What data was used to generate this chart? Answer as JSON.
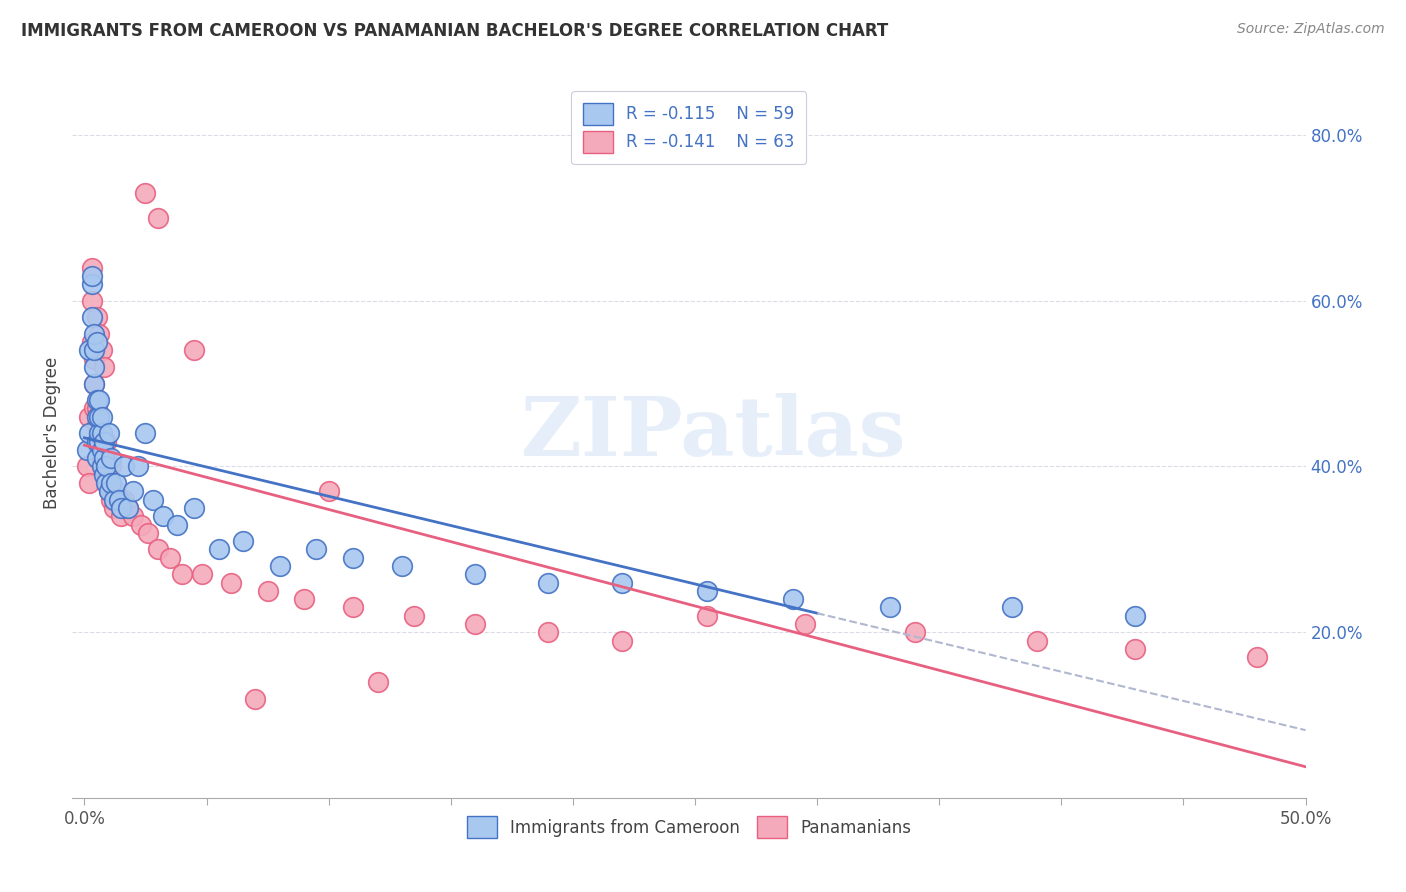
{
  "title": "IMMIGRANTS FROM CAMEROON VS PANAMANIAN BACHELOR'S DEGREE CORRELATION CHART",
  "source": "Source: ZipAtlas.com",
  "ylabel": "Bachelor's Degree",
  "x_tick_labels": [
    "0.0%",
    "",
    "",
    "",
    "",
    "",
    "",
    "",
    "",
    "50.0%"
  ],
  "x_tick_values": [
    0.0,
    0.05,
    0.1,
    0.15,
    0.2,
    0.25,
    0.3,
    0.35,
    0.4,
    0.5
  ],
  "y_tick_labels": [
    "20.0%",
    "40.0%",
    "60.0%",
    "80.0%"
  ],
  "y_tick_values": [
    0.2,
    0.4,
    0.6,
    0.8
  ],
  "xlim": [
    -0.005,
    0.5
  ],
  "ylim": [
    0.0,
    0.88
  ],
  "color_blue": "#A8C8F0",
  "color_pink": "#F4AABB",
  "color_blue_line": "#4472C4",
  "color_pink_line": "#E86080",
  "color_dashed": "#B0B8D0",
  "blue_x": [
    0.001,
    0.002,
    0.002,
    0.003,
    0.003,
    0.003,
    0.004,
    0.004,
    0.004,
    0.004,
    0.005,
    0.005,
    0.005,
    0.005,
    0.005,
    0.006,
    0.006,
    0.006,
    0.006,
    0.007,
    0.007,
    0.007,
    0.007,
    0.008,
    0.008,
    0.008,
    0.009,
    0.009,
    0.01,
    0.01,
    0.011,
    0.011,
    0.012,
    0.013,
    0.014,
    0.015,
    0.016,
    0.018,
    0.02,
    0.022,
    0.025,
    0.028,
    0.032,
    0.038,
    0.045,
    0.055,
    0.065,
    0.08,
    0.095,
    0.11,
    0.13,
    0.16,
    0.19,
    0.22,
    0.255,
    0.29,
    0.33,
    0.38,
    0.43
  ],
  "blue_y": [
    0.42,
    0.44,
    0.54,
    0.58,
    0.62,
    0.63,
    0.5,
    0.52,
    0.54,
    0.56,
    0.41,
    0.43,
    0.46,
    0.48,
    0.55,
    0.43,
    0.44,
    0.46,
    0.48,
    0.4,
    0.42,
    0.44,
    0.46,
    0.39,
    0.41,
    0.43,
    0.38,
    0.4,
    0.37,
    0.44,
    0.38,
    0.41,
    0.36,
    0.38,
    0.36,
    0.35,
    0.4,
    0.35,
    0.37,
    0.4,
    0.44,
    0.36,
    0.34,
    0.33,
    0.35,
    0.3,
    0.31,
    0.28,
    0.3,
    0.29,
    0.28,
    0.27,
    0.26,
    0.26,
    0.25,
    0.24,
    0.23,
    0.23,
    0.22
  ],
  "pink_x": [
    0.001,
    0.002,
    0.002,
    0.003,
    0.003,
    0.003,
    0.004,
    0.004,
    0.004,
    0.005,
    0.005,
    0.005,
    0.005,
    0.006,
    0.006,
    0.006,
    0.006,
    0.007,
    0.007,
    0.007,
    0.008,
    0.008,
    0.008,
    0.009,
    0.009,
    0.009,
    0.01,
    0.01,
    0.011,
    0.011,
    0.012,
    0.013,
    0.014,
    0.015,
    0.016,
    0.018,
    0.02,
    0.023,
    0.026,
    0.03,
    0.035,
    0.04,
    0.048,
    0.06,
    0.075,
    0.09,
    0.11,
    0.135,
    0.16,
    0.19,
    0.22,
    0.255,
    0.295,
    0.34,
    0.39,
    0.43,
    0.48,
    0.1,
    0.12,
    0.025,
    0.03,
    0.045,
    0.07
  ],
  "pink_y": [
    0.4,
    0.38,
    0.46,
    0.55,
    0.6,
    0.64,
    0.47,
    0.5,
    0.53,
    0.43,
    0.45,
    0.47,
    0.58,
    0.42,
    0.44,
    0.46,
    0.56,
    0.41,
    0.43,
    0.54,
    0.4,
    0.42,
    0.52,
    0.39,
    0.41,
    0.43,
    0.37,
    0.39,
    0.36,
    0.4,
    0.35,
    0.37,
    0.36,
    0.34,
    0.36,
    0.35,
    0.34,
    0.33,
    0.32,
    0.3,
    0.29,
    0.27,
    0.27,
    0.26,
    0.25,
    0.24,
    0.23,
    0.22,
    0.21,
    0.2,
    0.19,
    0.22,
    0.21,
    0.2,
    0.19,
    0.18,
    0.17,
    0.37,
    0.14,
    0.73,
    0.7,
    0.54,
    0.12
  ],
  "watermark_text": "ZIPatlas",
  "background_color": "#FFFFFF",
  "grid_color": "#DCDCE8",
  "blue_line_x": [
    0.0,
    0.3
  ],
  "pink_line_x": [
    0.0,
    0.5
  ],
  "dashed_line_x": [
    0.3,
    0.5
  ]
}
